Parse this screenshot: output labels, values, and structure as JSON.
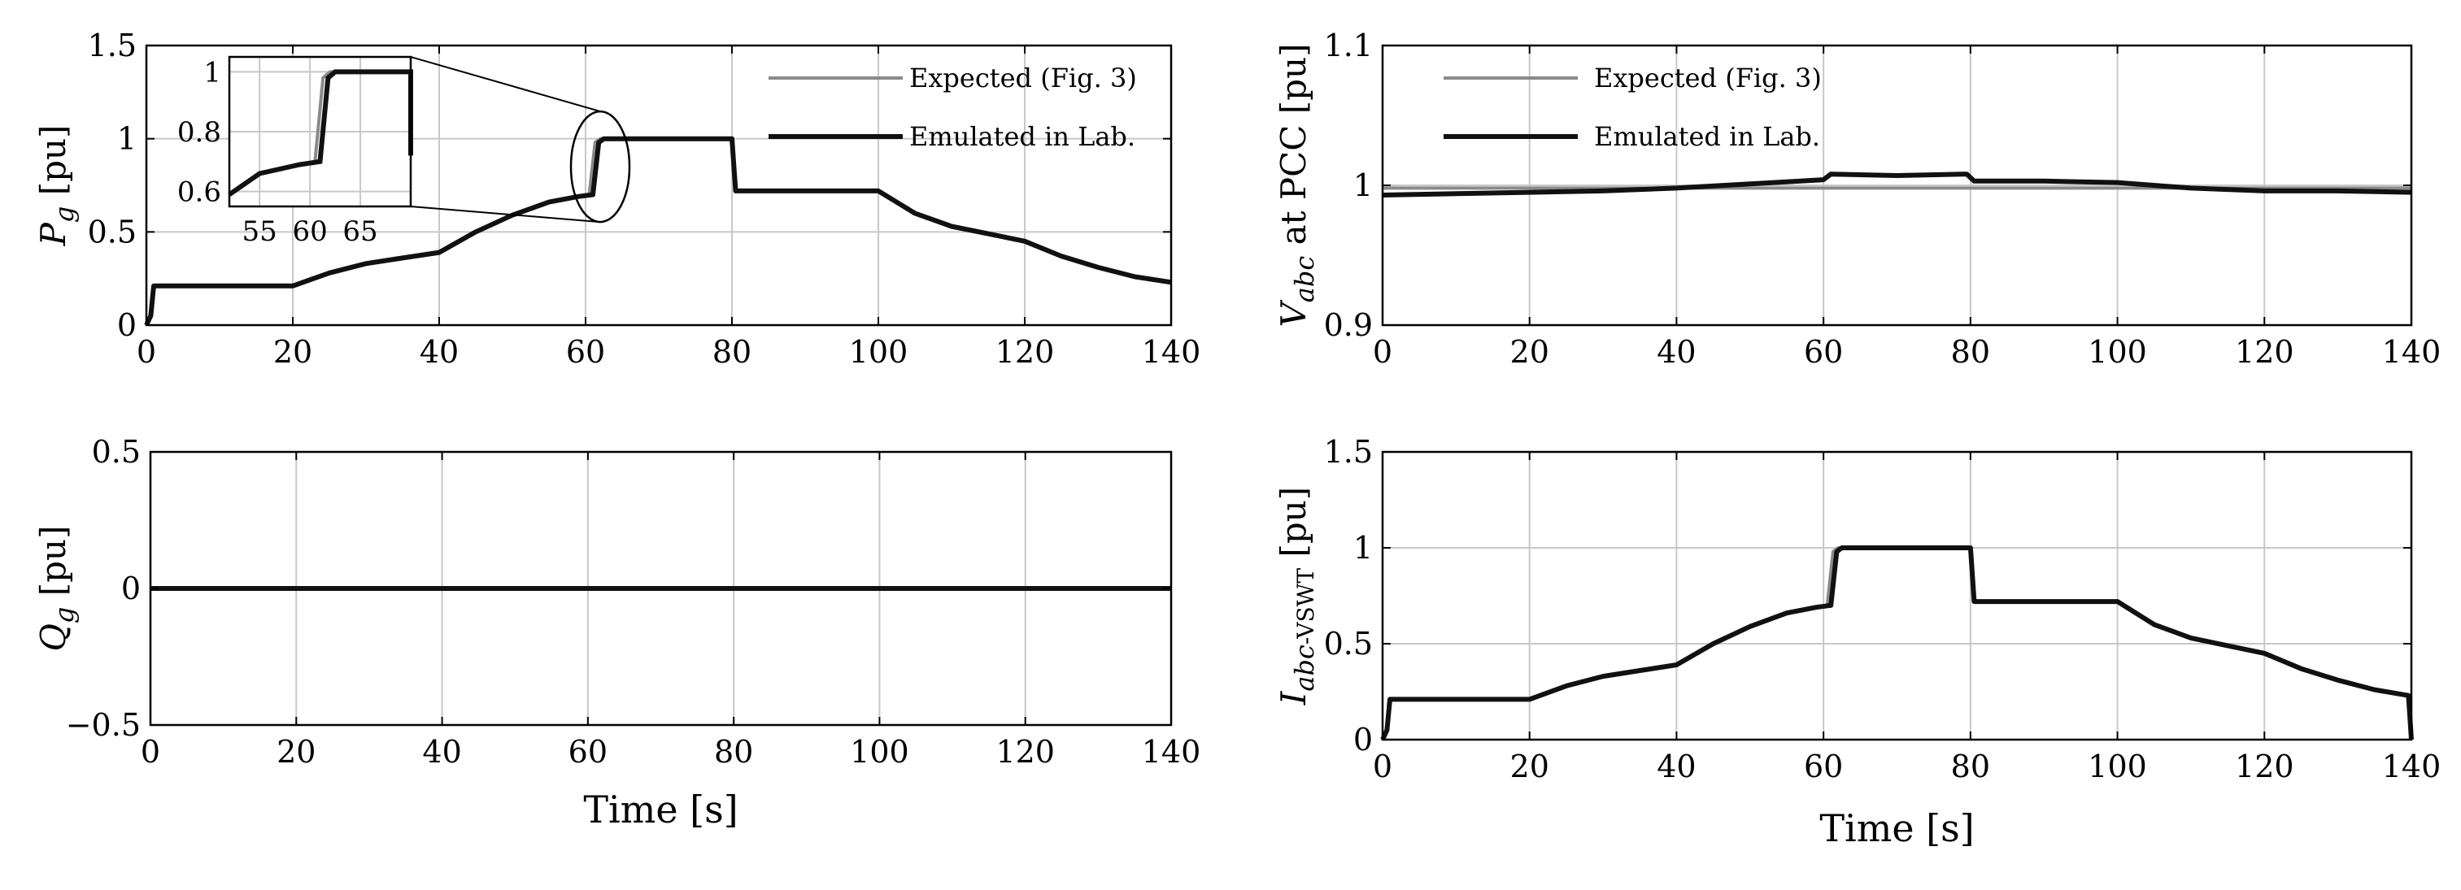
{
  "chart_data": [
    {
      "id": "pg",
      "type": "line",
      "ylabel_parts": [
        "P",
        "g",
        " [pu]"
      ],
      "xlabel": "",
      "xlim": [
        0,
        140
      ],
      "ylim": [
        0,
        1.5
      ],
      "xticks": [
        0,
        20,
        40,
        60,
        80,
        100,
        120,
        140
      ],
      "xtick_labels": [
        "0",
        "20",
        "40",
        "60",
        "80",
        "100",
        "120",
        "140"
      ],
      "yticks": [
        0,
        0.5,
        1,
        1.5
      ],
      "ytick_labels": [
        "0",
        "0.5",
        "1",
        "1.5"
      ],
      "grid": true,
      "legend": {
        "position": "top-right",
        "entries": [
          "Expected (Fig. 3)",
          "Emulated in Lab."
        ]
      },
      "series": [
        {
          "name": "Expected (Fig. 3)",
          "color": "#8a8a8a",
          "x": [
            0,
            0.6,
            1,
            20,
            25,
            30,
            35,
            40,
            45,
            50,
            55,
            59,
            60.5,
            61.3,
            62,
            80,
            80.5,
            100,
            105,
            110,
            115,
            120,
            125,
            130,
            135,
            140
          ],
          "y": [
            0,
            0.05,
            0.21,
            0.21,
            0.28,
            0.33,
            0.36,
            0.39,
            0.5,
            0.59,
            0.66,
            0.69,
            0.7,
            0.98,
            1.0,
            1.0,
            0.72,
            0.72,
            0.6,
            0.53,
            0.49,
            0.45,
            0.37,
            0.31,
            0.26,
            0.23
          ]
        },
        {
          "name": "Emulated in Lab.",
          "color": "#111111",
          "x": [
            0,
            0.6,
            1,
            20,
            25,
            30,
            35,
            40,
            45,
            50,
            55,
            59,
            61,
            61.8,
            62.5,
            80,
            80.5,
            100,
            105,
            110,
            115,
            120,
            125,
            130,
            135,
            140
          ],
          "y": [
            0,
            0.05,
            0.21,
            0.21,
            0.28,
            0.33,
            0.36,
            0.39,
            0.5,
            0.59,
            0.66,
            0.69,
            0.7,
            0.98,
            1.0,
            1.0,
            0.72,
            0.72,
            0.6,
            0.53,
            0.49,
            0.45,
            0.37,
            0.31,
            0.26,
            0.23
          ]
        }
      ],
      "inset": {
        "xlim": [
          52,
          70
        ],
        "ylim": [
          0.55,
          1.05
        ],
        "xticks": [
          55,
          60,
          65
        ],
        "xtick_labels": [
          "55",
          "60",
          "65"
        ],
        "yticks": [
          0.6,
          0.8,
          1
        ],
        "ytick_labels": [
          "0.6",
          "0.8",
          "1"
        ],
        "zoom_center": [
          62,
          0.85
        ]
      }
    },
    {
      "id": "vabc",
      "type": "line",
      "ylabel_parts": [
        "V",
        "abc",
        " at PCC [pu]"
      ],
      "xlabel": "",
      "xlim": [
        0,
        140
      ],
      "ylim": [
        0.9,
        1.1
      ],
      "xticks": [
        0,
        20,
        40,
        60,
        80,
        100,
        120,
        140
      ],
      "xtick_labels": [
        "0",
        "20",
        "40",
        "60",
        "80",
        "100",
        "120",
        "140"
      ],
      "yticks": [
        0.9,
        1,
        1.1
      ],
      "ytick_labels": [
        "0.9",
        "1",
        "1.1"
      ],
      "grid": true,
      "legend": {
        "position": "top-left",
        "entries": [
          "Expected (Fig. 3)",
          "Emulated in Lab."
        ]
      },
      "series": [
        {
          "name": "Expected (Fig. 3)",
          "color": "#8a8a8a",
          "x": [
            0,
            140
          ],
          "y": [
            0.998,
            0.998
          ]
        },
        {
          "name": "Emulated in Lab.",
          "color": "#111111",
          "x": [
            0,
            10,
            20,
            30,
            40,
            50,
            60,
            61,
            70,
            79.5,
            80.5,
            90,
            100,
            110,
            120,
            130,
            140
          ],
          "y": [
            0.993,
            0.994,
            0.995,
            0.996,
            0.998,
            1.001,
            1.004,
            1.008,
            1.007,
            1.008,
            1.003,
            1.003,
            1.002,
            0.998,
            0.996,
            0.996,
            0.995
          ]
        }
      ]
    },
    {
      "id": "qg",
      "type": "line",
      "ylabel_parts": [
        "Q",
        "g",
        " [pu]"
      ],
      "xlabel": "Time [s]",
      "xlim": [
        0,
        140
      ],
      "ylim": [
        -0.5,
        0.5
      ],
      "xticks": [
        0,
        20,
        40,
        60,
        80,
        100,
        120,
        140
      ],
      "xtick_labels": [
        "0",
        "20",
        "40",
        "60",
        "80",
        "100",
        "120",
        "140"
      ],
      "yticks": [
        -0.5,
        0,
        0.5
      ],
      "ytick_labels": [
        "−0.5",
        "0",
        "0.5"
      ],
      "grid": true,
      "series": [
        {
          "name": "Emulated in Lab.",
          "color": "#111111",
          "x": [
            0,
            140
          ],
          "y": [
            0,
            0
          ]
        }
      ]
    },
    {
      "id": "iabc",
      "type": "line",
      "ylabel_parts": [
        "I",
        "abc",
        "-VSWT",
        " [pu]"
      ],
      "xlabel": "Time [s]",
      "xlim": [
        0,
        140
      ],
      "ylim": [
        0,
        1.5
      ],
      "xticks": [
        0,
        20,
        40,
        60,
        80,
        100,
        120,
        140
      ],
      "xtick_labels": [
        "0",
        "20",
        "40",
        "60",
        "80",
        "100",
        "120",
        "140"
      ],
      "yticks": [
        0,
        0.5,
        1,
        1.5
      ],
      "ytick_labels": [
        "0",
        "0.5",
        "1",
        "1.5"
      ],
      "grid": true,
      "series": [
        {
          "name": "Expected (Fig. 3)",
          "color": "#8a8a8a",
          "x": [
            0,
            0.6,
            1,
            20,
            25,
            30,
            35,
            40,
            45,
            50,
            55,
            59,
            60.5,
            61.3,
            62,
            80,
            80.5,
            100,
            105,
            110,
            115,
            120,
            125,
            130,
            135,
            139.6,
            140
          ],
          "y": [
            0,
            0.05,
            0.21,
            0.21,
            0.28,
            0.33,
            0.36,
            0.39,
            0.5,
            0.59,
            0.66,
            0.69,
            0.7,
            0.98,
            1.0,
            1.0,
            0.72,
            0.72,
            0.6,
            0.53,
            0.49,
            0.45,
            0.37,
            0.31,
            0.26,
            0.23,
            0.0
          ]
        },
        {
          "name": "Emulated in Lab.",
          "color": "#111111",
          "x": [
            0,
            0.6,
            1,
            20,
            25,
            30,
            35,
            40,
            45,
            50,
            55,
            59,
            61,
            61.8,
            62.5,
            80,
            80.5,
            100,
            105,
            110,
            115,
            120,
            125,
            130,
            135,
            139.6,
            140
          ],
          "y": [
            0,
            0.05,
            0.21,
            0.21,
            0.28,
            0.33,
            0.36,
            0.39,
            0.5,
            0.59,
            0.66,
            0.69,
            0.7,
            0.98,
            1.0,
            1.0,
            0.72,
            0.72,
            0.6,
            0.53,
            0.49,
            0.45,
            0.37,
            0.31,
            0.26,
            0.23,
            0.0
          ]
        }
      ]
    }
  ]
}
